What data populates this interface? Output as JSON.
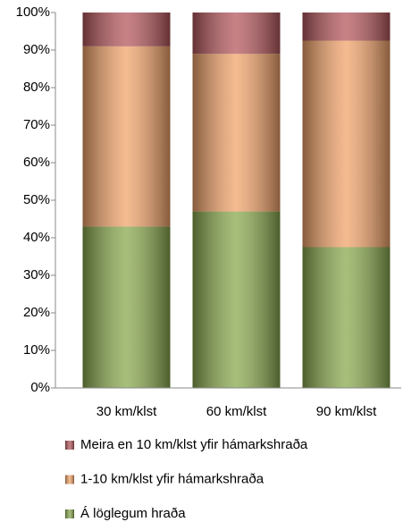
{
  "chart_data": {
    "type": "stacked_bar",
    "categories": [
      "30 km/klst",
      "60 km/klst",
      "90 km/klst"
    ],
    "series": [
      {
        "name": "Á löglegum hraða",
        "color": "#8aa94e",
        "values": [
          43,
          47,
          37.5
        ]
      },
      {
        "name": "1-10 km/klst yfir hámarkshraða",
        "color": "#f2a46b",
        "values": [
          48,
          42,
          55
        ]
      },
      {
        "name": "Meira en 10 km/klst yfir hámarkshraða",
        "color": "#b5585d",
        "values": [
          9,
          11,
          7.5
        ]
      }
    ],
    "ylim": [
      0,
      100
    ],
    "yticks": [
      {
        "value": 0,
        "label": "0%"
      },
      {
        "value": 10,
        "label": "10%"
      },
      {
        "value": 20,
        "label": "20%"
      },
      {
        "value": 30,
        "label": "30%"
      },
      {
        "value": 40,
        "label": "40%"
      },
      {
        "value": 50,
        "label": "50%"
      },
      {
        "value": 60,
        "label": "60%"
      },
      {
        "value": 70,
        "label": "70%"
      },
      {
        "value": 80,
        "label": "80%"
      },
      {
        "value": 90,
        "label": "90%"
      },
      {
        "value": 100,
        "label": "100%"
      }
    ],
    "grid": false
  }
}
